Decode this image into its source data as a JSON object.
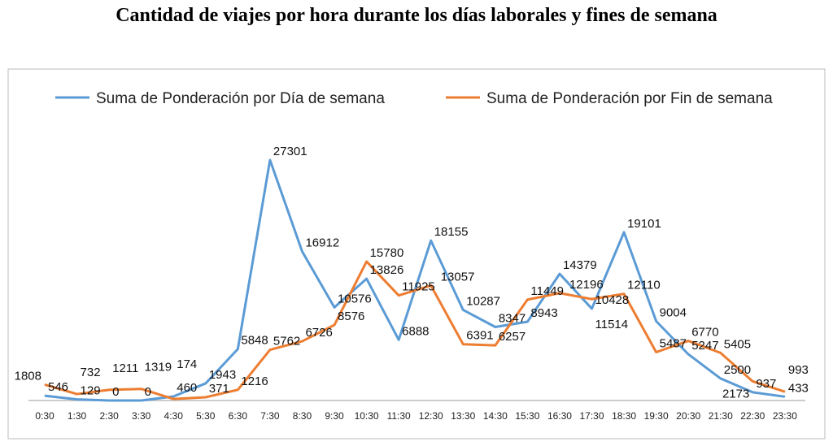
{
  "chart_data": {
    "type": "line",
    "title": "Cantidad de viajes por hora durante los días laborales y fines de semana",
    "xlabel": "",
    "ylabel": "",
    "ylim": [
      0,
      28000
    ],
    "legend_position": "top",
    "grid": false,
    "categories": [
      "0:30",
      "1:30",
      "2:30",
      "3:30",
      "4:30",
      "5:30",
      "6:30",
      "7:30",
      "8:30",
      "9:30",
      "10:30",
      "11:30",
      "12:30",
      "13:30",
      "14:30",
      "15:30",
      "16:30",
      "17:30",
      "18:30",
      "19:30",
      "20:30",
      "21:30",
      "22:30",
      "23:30"
    ],
    "series": [
      {
        "name": "Suma de Ponderación por Día de semana",
        "color": "#5b9bd5",
        "values": [
          546,
          129,
          0,
          0,
          460,
          1943,
          5848,
          27301,
          16912,
          10576,
          13826,
          6888,
          18155,
          10287,
          8347,
          8943,
          14379,
          10428,
          19101,
          9004,
          5247,
          2500,
          937,
          433
        ]
      },
      {
        "name": "Suma de Ponderación por Fin de semana",
        "color": "#ed7d31",
        "values": [
          1808,
          732,
          1211,
          1319,
          174,
          371,
          1216,
          5762,
          6726,
          8576,
          15780,
          11925,
          13057,
          6391,
          6257,
          11449,
          12196,
          11514,
          12110,
          5487,
          6770,
          5405,
          2173,
          993
        ]
      }
    ]
  }
}
